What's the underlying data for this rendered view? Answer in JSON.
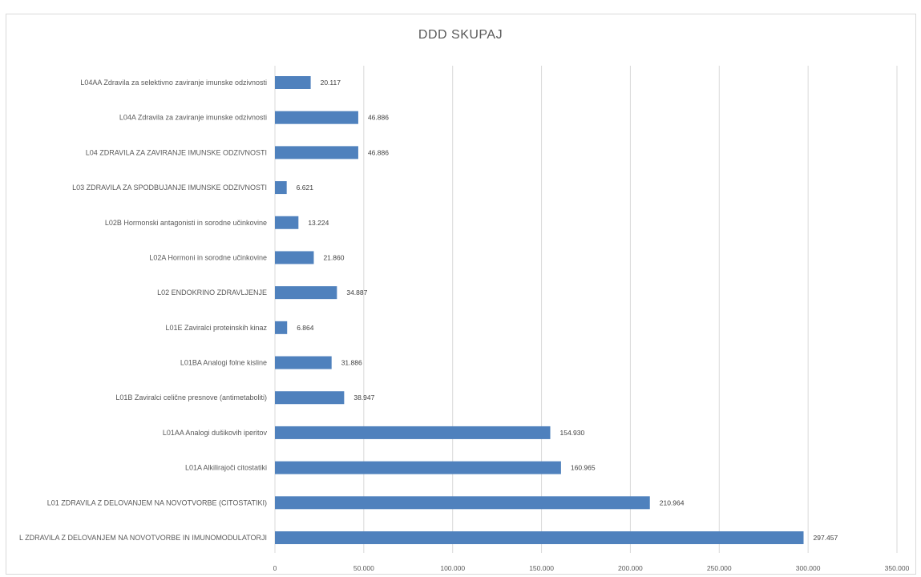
{
  "chart_data": {
    "type": "bar",
    "orientation": "horizontal",
    "title": "DDD SKUPAJ",
    "xlabel": "",
    "ylabel": "",
    "xlim": [
      0,
      350000
    ],
    "xticks": [
      0,
      50000,
      100000,
      150000,
      200000,
      250000,
      300000,
      350000
    ],
    "xtick_labels": [
      "0",
      "50.000",
      "100.000",
      "150.000",
      "200.000",
      "250.000",
      "300.000",
      "350.000"
    ],
    "grid": true,
    "legend": "none",
    "bar_color": "#4f81bd",
    "categories": [
      "L04AA Zdravila za selektivno zaviranje imunske odzivnosti",
      "L04A Zdravila za zaviranje imunske odzivnosti",
      "L04 ZDRAVILA ZA ZAVIRANJE IMUNSKE ODZIVNOSTI",
      "L03 ZDRAVILA ZA SPODBUJANJE IMUNSKE ODZIVNOSTI",
      "L02B Hormonski antagonisti in sorodne učinkovine",
      "L02A Hormoni in sorodne učinkovine",
      "L02 ENDOKRINO ZDRAVLJENJE",
      "L01E Zaviralci proteinskih kinaz",
      "L01BA Analogi folne kisline",
      "L01B Zaviralci celične presnove (antimetaboliti)",
      "L01AA Analogi dušikovih iperitov",
      "L01A Alkilirajoči citostatiki",
      "L01 ZDRAVILA Z DELOVANJEM NA NOVOTVORBE (CITOSTATIKI)",
      "L ZDRAVILA Z DELOVANJEM NA NOVOTVORBE IN IMUNOMODULATORJI"
    ],
    "values": [
      20117,
      46886,
      46886,
      6621,
      13224,
      21860,
      34887,
      6864,
      31886,
      38947,
      154930,
      160965,
      210964,
      297457
    ],
    "value_labels": [
      "20.117",
      "46.886",
      "46.886",
      "6.621",
      "13.224",
      "21.860",
      "34.887",
      "6.864",
      "31.886",
      "38.947",
      "154.930",
      "160.965",
      "210.964",
      "297.457"
    ]
  }
}
